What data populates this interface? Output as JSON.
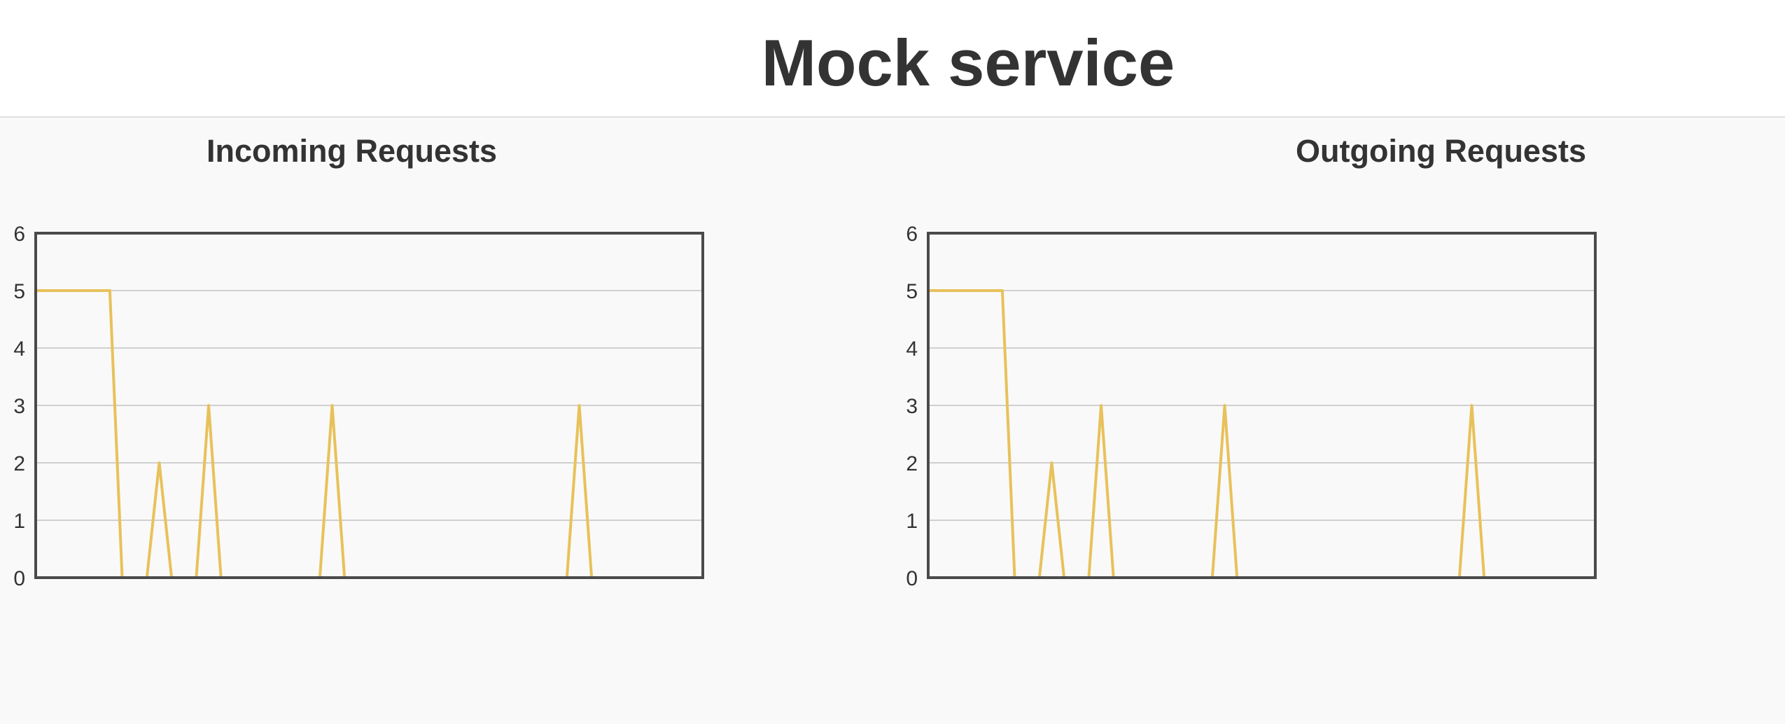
{
  "page": {
    "title": "Mock service"
  },
  "colors": {
    "line": "#e8c15a",
    "frame": "#4a4a4a",
    "grid": "#d0d0d0",
    "text": "#333333",
    "header_bg": "#ffffff",
    "page_bg": "#f9f9f9"
  },
  "chart_data": [
    {
      "type": "line",
      "title": "Incoming Requests",
      "xlabel": "",
      "ylabel": "",
      "ylim": [
        0,
        6
      ],
      "yticks": [
        "0",
        "1",
        "2",
        "3",
        "4",
        "5",
        "6"
      ],
      "grid": true,
      "legend": "none",
      "series": [
        {
          "values": [
            5,
            5,
            5,
            5,
            5,
            5,
            5,
            0,
            0,
            0,
            2,
            0,
            0,
            0,
            3,
            0,
            0,
            0,
            0,
            0,
            0,
            0,
            0,
            0,
            3,
            0,
            0,
            0,
            0,
            0,
            0,
            0,
            0,
            0,
            0,
            0,
            0,
            0,
            0,
            0,
            0,
            0,
            0,
            0,
            3,
            0,
            0,
            0,
            0,
            0,
            0,
            0,
            0,
            0,
            0
          ]
        }
      ]
    },
    {
      "type": "line",
      "title": "Outgoing Requests",
      "xlabel": "",
      "ylabel": "",
      "ylim": [
        0,
        6
      ],
      "yticks": [
        "0",
        "1",
        "2",
        "3",
        "4",
        "5",
        "6"
      ],
      "grid": true,
      "legend": "none",
      "series": [
        {
          "values": [
            5,
            5,
            5,
            5,
            5,
            5,
            5,
            0,
            0,
            0,
            2,
            0,
            0,
            0,
            3,
            0,
            0,
            0,
            0,
            0,
            0,
            0,
            0,
            0,
            3,
            0,
            0,
            0,
            0,
            0,
            0,
            0,
            0,
            0,
            0,
            0,
            0,
            0,
            0,
            0,
            0,
            0,
            0,
            0,
            3,
            0,
            0,
            0,
            0,
            0,
            0,
            0,
            0,
            0,
            0
          ]
        }
      ]
    }
  ]
}
